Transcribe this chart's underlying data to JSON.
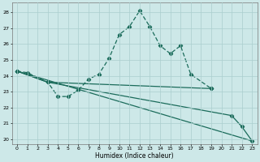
{
  "title": "",
  "xlabel": "Humidex (Indice chaleur)",
  "x": [
    0,
    1,
    2,
    3,
    4,
    5,
    6,
    7,
    8,
    9,
    10,
    11,
    12,
    13,
    14,
    15,
    16,
    17,
    18,
    19,
    20,
    21,
    22,
    23
  ],
  "line1_x": [
    0,
    1,
    3,
    4,
    5,
    6,
    7,
    8,
    9,
    10,
    11,
    12,
    13,
    14,
    15,
    16,
    17,
    19
  ],
  "line1_y": [
    24.3,
    24.2,
    23.6,
    22.7,
    22.7,
    23.1,
    23.8,
    24.1,
    25.1,
    26.6,
    27.1,
    28.1,
    27.1,
    25.9,
    25.4,
    25.9,
    24.1,
    23.2
  ],
  "line2_x": [
    0,
    3,
    19
  ],
  "line2_y": [
    24.3,
    23.6,
    23.2
  ],
  "line3_x": [
    0,
    3,
    21,
    22,
    23
  ],
  "line3_y": [
    24.3,
    23.6,
    21.5,
    20.8,
    19.9
  ],
  "line4_x": [
    0,
    23
  ],
  "line4_y": [
    24.3,
    19.9
  ],
  "bg_color": "#cde8e8",
  "line_color": "#1a6b5a",
  "grid_color": "#aacece",
  "ylim": [
    19.7,
    28.6
  ],
  "xlim": [
    -0.5,
    23.5
  ],
  "yticks": [
    20,
    21,
    22,
    23,
    24,
    25,
    26,
    27,
    28
  ],
  "xticks": [
    0,
    1,
    2,
    3,
    4,
    5,
    6,
    7,
    8,
    9,
    10,
    11,
    12,
    13,
    14,
    15,
    16,
    17,
    18,
    19,
    20,
    21,
    22,
    23
  ]
}
